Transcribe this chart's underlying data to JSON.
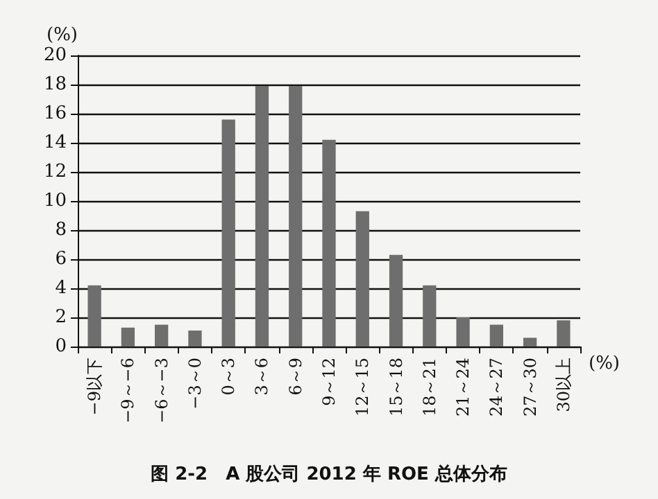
{
  "chart_data": {
    "type": "bar",
    "title": "图 2-2　A 股公司 2012 年 ROE 总体分布",
    "ylabel": "(%)",
    "xlabel": "(%)",
    "categories": [
      "−9以下",
      "−9～−6",
      "−6～−3",
      "−3～0",
      "0～3",
      "3～6",
      "6～9",
      "9～12",
      "12～15",
      "15～18",
      "18～21",
      "21～24",
      "24～27",
      "27～30",
      "30以上"
    ],
    "values": [
      4.2,
      1.3,
      1.5,
      1.1,
      15.6,
      17.9,
      17.9,
      14.2,
      9.3,
      6.3,
      4.2,
      2.0,
      1.5,
      0.6,
      1.8
    ],
    "color": "#6e6e6e",
    "ylim": [
      0,
      20
    ],
    "yticks": [
      0,
      2,
      4,
      6,
      8,
      10,
      12,
      14,
      16,
      18,
      20
    ],
    "grid": "y"
  }
}
